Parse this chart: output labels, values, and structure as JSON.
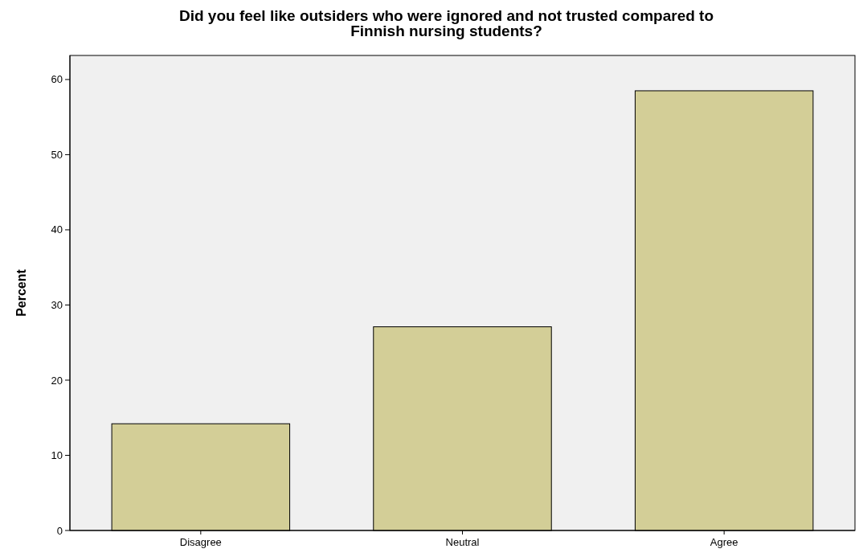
{
  "chart_data": {
    "type": "bar",
    "title": "Did you feel like outsiders who were ignored and not trusted compared to Finnish nursing students?",
    "ylabel": "Percent",
    "categories": [
      "Disagree",
      "Neutral",
      "Agree"
    ],
    "values": [
      14.2,
      27.1,
      58.5
    ],
    "color": "#d3ce97",
    "ylim": [
      0,
      63.2
    ],
    "yticks": [
      0,
      10,
      20,
      30,
      40,
      50,
      60
    ],
    "grid": false
  }
}
